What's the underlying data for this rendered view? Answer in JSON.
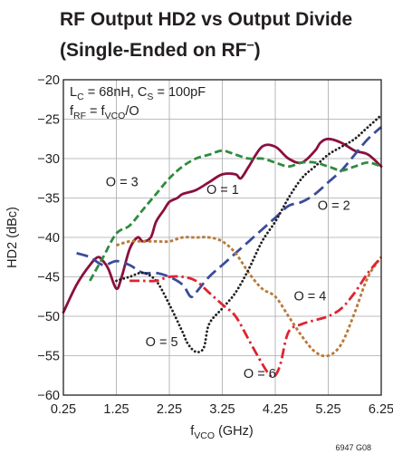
{
  "chart_data": {
    "type": "line",
    "title": {
      "line1": "RF Output HD2 vs Output Divide",
      "line2_prefix": "(Single-Ended on RF",
      "line2_sup": "–",
      "line2_suffix": ")"
    },
    "xlabel": {
      "main": "f",
      "sub": "VCO",
      "unit": " (GHz)"
    },
    "ylabel": "HD2 (dBc)",
    "xlim": [
      0.25,
      6.25
    ],
    "ylim": [
      -60,
      -20
    ],
    "xticks": [
      "0.25",
      "1.25",
      "2.25",
      "3.25",
      "4.25",
      "5.25",
      "6.25"
    ],
    "yticks": [
      "−20",
      "−25",
      "−30",
      "−35",
      "−40",
      "−45",
      "−50",
      "−55",
      "−60"
    ],
    "grid": true,
    "conditions": {
      "line1": {
        "a": "L",
        "a_sub": "C",
        "a_val": " = 68nH, ",
        "b": "C",
        "b_sub": "S",
        "b_val": " = 100pF"
      },
      "line2": {
        "a": "f",
        "a_sub": "RF",
        "mid": " = f",
        "b_sub": "VCO",
        "tail": "/O"
      }
    },
    "figure_id": "6947 G08",
    "series": [
      {
        "name": "O = 1",
        "color": "#8b0f3f",
        "dash": "solid",
        "x": [
          0.25,
          0.5,
          0.75,
          0.9,
          1.0,
          1.1,
          1.25,
          1.35,
          1.5,
          1.65,
          1.75,
          1.9,
          2.0,
          2.15,
          2.25,
          2.4,
          2.5,
          2.75,
          3.0,
          3.25,
          3.5,
          3.6,
          3.75,
          4.0,
          4.25,
          4.5,
          4.75,
          5.0,
          5.1,
          5.25,
          5.5,
          5.75,
          6.0,
          6.25
        ],
        "y": [
          -49.5,
          -46,
          -43.5,
          -42.5,
          -43,
          -44,
          -46.5,
          -45,
          -41.5,
          -40,
          -40.5,
          -40,
          -38,
          -36.5,
          -35.5,
          -35,
          -34.5,
          -34,
          -33,
          -32,
          -32,
          -32.5,
          -31,
          -28.5,
          -28.5,
          -30,
          -30.5,
          -29,
          -28,
          -27.5,
          -28,
          -29,
          -29.5,
          -31
        ]
      },
      {
        "name": "O = 2",
        "color": "#3a4b9a",
        "dash": "long",
        "x": [
          0.5,
          0.75,
          1.0,
          1.25,
          1.5,
          1.75,
          2.0,
          2.25,
          2.5,
          2.65,
          2.75,
          3.0,
          3.25,
          3.5,
          3.75,
          4.0,
          4.25,
          4.5,
          4.75,
          5.0,
          5.25,
          5.5,
          5.75,
          6.0,
          6.25
        ],
        "y": [
          -42,
          -42.5,
          -43.5,
          -43,
          -43.5,
          -44.5,
          -44.5,
          -45,
          -46,
          -47.5,
          -47,
          -45,
          -43.5,
          -42,
          -40.5,
          -39,
          -37.5,
          -36,
          -35.5,
          -34.5,
          -33,
          -31.5,
          -29.5,
          -27.5,
          -26
        ]
      },
      {
        "name": "O = 3",
        "color": "#2e8b3e",
        "dash": "medium",
        "x": [
          0.75,
          1.0,
          1.25,
          1.5,
          1.75,
          2.0,
          2.25,
          2.5,
          2.75,
          3.0,
          3.25,
          3.5,
          3.75,
          4.0,
          4.25,
          4.5,
          4.75,
          5.0,
          5.25,
          5.5,
          5.75,
          6.0,
          6.25
        ],
        "y": [
          -45.5,
          -42.5,
          -39.5,
          -38.5,
          -36.5,
          -34.5,
          -32.5,
          -31,
          -30,
          -29.5,
          -29,
          -29.5,
          -30,
          -30,
          -30.5,
          -31,
          -30.5,
          -30.5,
          -31,
          -31.5,
          -31,
          -30.5,
          -31
        ]
      },
      {
        "name": "O = 4",
        "color": "#b8793a",
        "dash": "short",
        "x": [
          1.25,
          1.5,
          1.75,
          2.0,
          2.25,
          2.5,
          2.75,
          3.0,
          3.25,
          3.5,
          3.75,
          4.0,
          4.25,
          4.5,
          4.75,
          5.0,
          5.25,
          5.5,
          5.75,
          6.0,
          6.25
        ],
        "y": [
          -41,
          -40.5,
          -40.5,
          -40.5,
          -40.5,
          -40,
          -40,
          -40,
          -40.5,
          -42,
          -44.5,
          -46.5,
          -47.5,
          -50,
          -52.5,
          -54.5,
          -55,
          -53.5,
          -49.5,
          -45,
          -42.5
        ]
      },
      {
        "name": "O = 5",
        "color": "#231f20",
        "dash": "dotted",
        "x": [
          1.25,
          1.5,
          1.75,
          2.0,
          2.25,
          2.5,
          2.6,
          2.75,
          2.9,
          3.0,
          3.25,
          3.5,
          3.75,
          4.0,
          4.25,
          4.5,
          4.75,
          5.0,
          5.25,
          5.5,
          5.75,
          6.0,
          6.25
        ],
        "y": [
          -45.5,
          -45,
          -44.5,
          -45.5,
          -48.5,
          -52,
          -53.5,
          -54.5,
          -54,
          -51,
          -49,
          -47,
          -44,
          -40.5,
          -38,
          -35,
          -32.5,
          -31,
          -29.5,
          -28.5,
          -27.5,
          -26,
          -24.5
        ]
      },
      {
        "name": "O = 6",
        "color": "#e02330",
        "dash": "dashdot",
        "x": [
          1.5,
          1.75,
          2.0,
          2.25,
          2.5,
          2.75,
          3.0,
          3.25,
          3.5,
          3.75,
          4.0,
          4.15,
          4.25,
          4.35,
          4.5,
          4.75,
          5.0,
          5.25,
          5.5,
          5.75,
          6.0,
          6.25
        ],
        "y": [
          -45.5,
          -45.5,
          -45.5,
          -45,
          -45,
          -45.5,
          -47,
          -48.5,
          -50,
          -53,
          -56,
          -57.5,
          -57.5,
          -56,
          -52,
          -51,
          -50.5,
          -50,
          -49,
          -47,
          -44.5,
          -42.5
        ]
      }
    ],
    "curve_labels": [
      {
        "text": "O = 3",
        "x": 1.05,
        "y": -33.5
      },
      {
        "text": "O = 1",
        "x": 2.95,
        "y": -34.5
      },
      {
        "text": "O = 2",
        "x": 5.05,
        "y": -36.5
      },
      {
        "text": "O = 4",
        "x": 4.6,
        "y": -48.0
      },
      {
        "text": "O = 5",
        "x": 1.8,
        "y": -53.8
      },
      {
        "text": "O = 6",
        "x": 3.65,
        "y": -57.8
      }
    ]
  }
}
